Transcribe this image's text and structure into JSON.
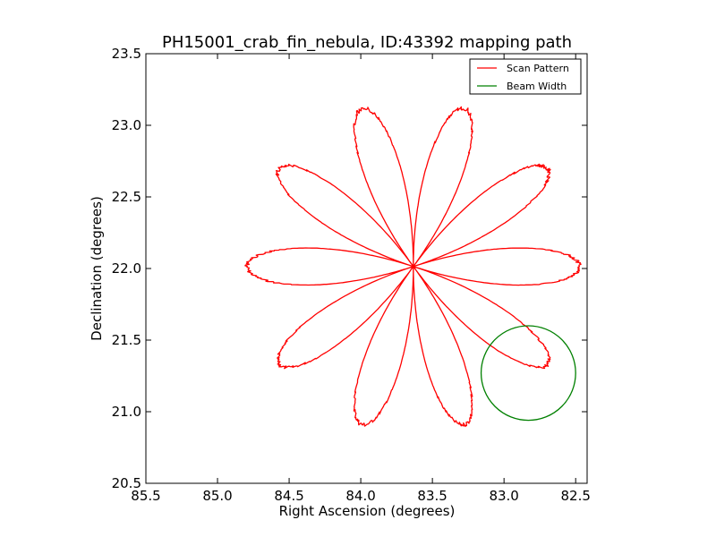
{
  "chart_data": {
    "type": "line",
    "title": "PH15001_crab_fin_nebula, ID:43392 mapping path",
    "xlabel": "Right Ascension (degrees)",
    "ylabel": "Declination (degrees)",
    "xlim": [
      85.5,
      82.42
    ],
    "ylim": [
      20.5,
      23.5
    ],
    "x_inverted": true,
    "xticks": [
      85.5,
      85.0,
      84.5,
      84.0,
      83.5,
      83.0,
      82.5
    ],
    "xtick_labels": [
      "85.5",
      "85.0",
      "84.5",
      "84.0",
      "83.5",
      "83.0",
      "82.5"
    ],
    "yticks": [
      20.5,
      21.0,
      21.5,
      22.0,
      22.5,
      23.0,
      23.5
    ],
    "ytick_labels": [
      "20.5",
      "21.0",
      "21.5",
      "22.0",
      "22.5",
      "23.0",
      "23.5"
    ],
    "grid": false,
    "legend_position": "top-right",
    "series": [
      {
        "name": "Scan Pattern",
        "color": "#ff0000",
        "kind": "rose",
        "center_ra": 83.633,
        "center_dec": 22.014,
        "petals": 10,
        "petal_length": 1.16,
        "first_petal_angle_deg": 0,
        "start": [
          84.75,
          22.02
        ],
        "end": [
          82.85,
          21.22
        ]
      },
      {
        "name": "Beam Width",
        "color": "#008000",
        "kind": "circle",
        "center_ra": 82.83,
        "center_dec": 21.27,
        "radius_dec": 0.33
      }
    ]
  }
}
